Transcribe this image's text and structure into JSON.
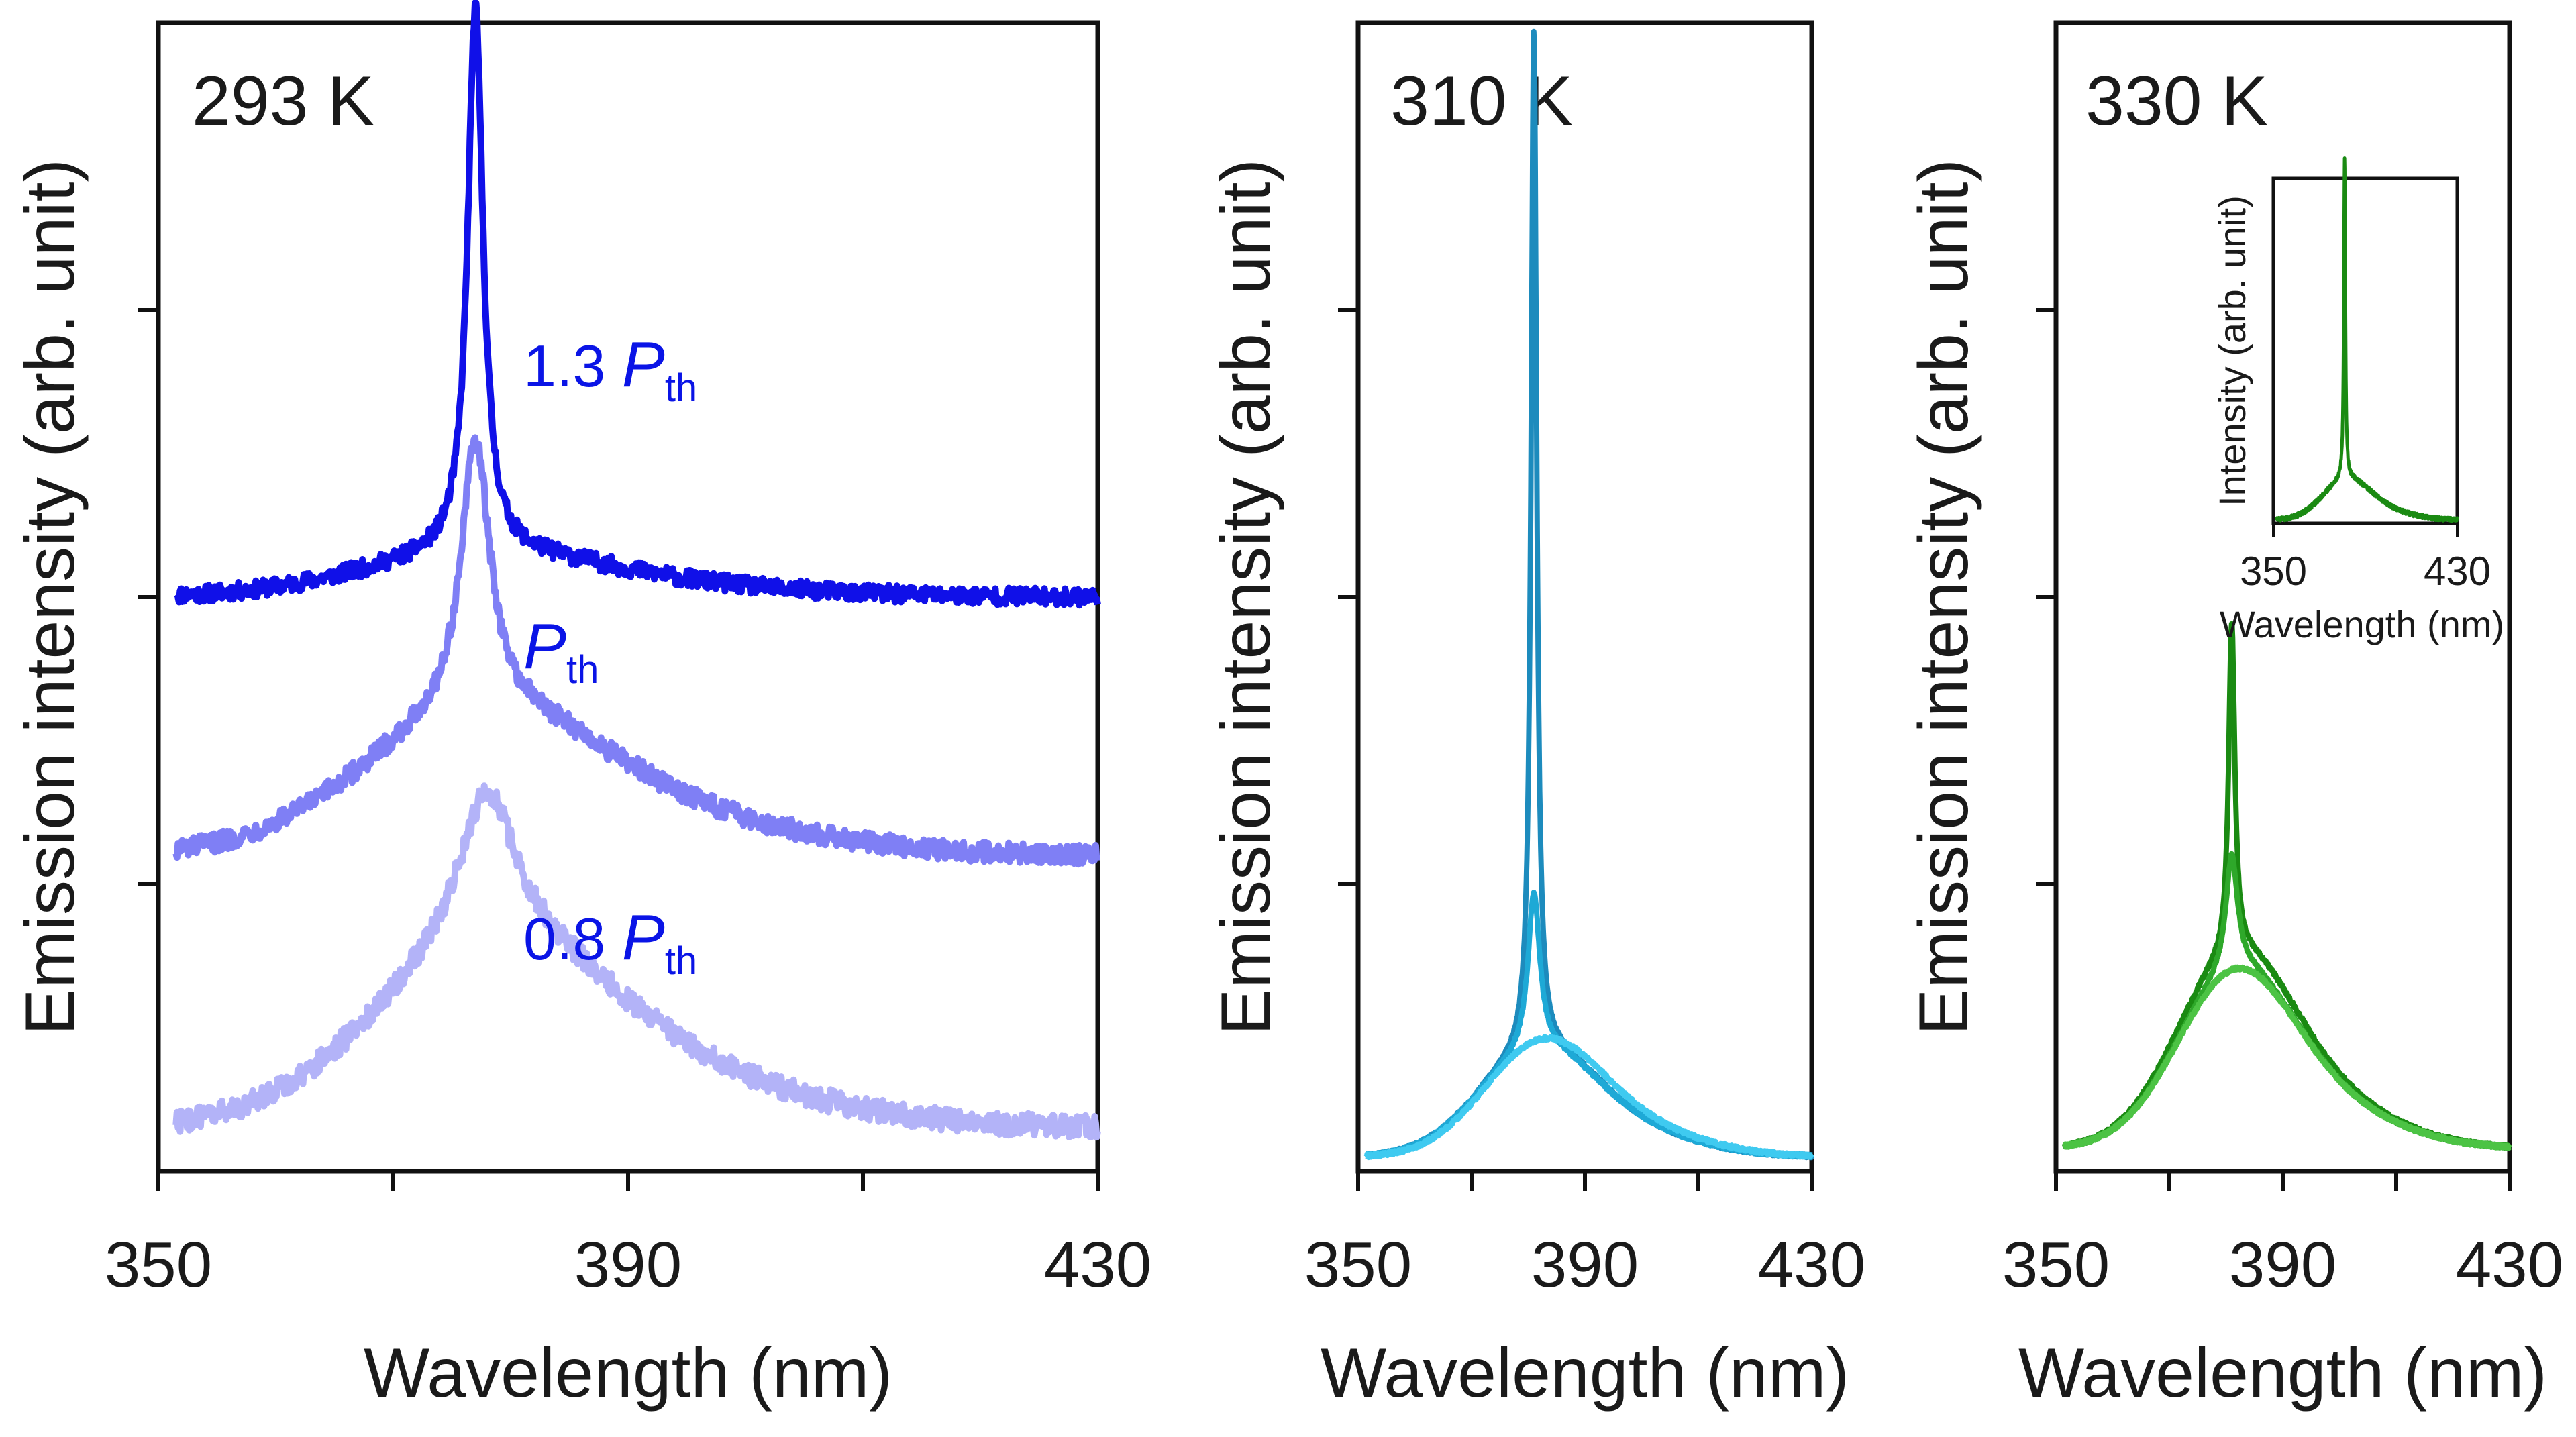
{
  "chart_data": [
    {
      "type": "line",
      "panel_label": "293 K",
      "xlabel": "Wavelength (nm)",
      "ylabel": "Emission intensity (arb. unit)",
      "xlim": [
        350,
        430
      ],
      "ylim": [
        0,
        4
      ],
      "xticks": [
        350,
        390,
        430
      ],
      "x_minor_ticks": [
        370,
        410
      ],
      "y_ticks_unlabeled": [
        1,
        2,
        3
      ],
      "series": [
        {
          "annotation": "1.3 P_th",
          "color": "#1010e8",
          "baseline": 2.0,
          "peak_wavelength": 377,
          "peak_height": 1.9,
          "fwhm": 1.6,
          "broad_height": 0.12,
          "noise": 0.03
        },
        {
          "annotation": "P_th",
          "color": "#7f7ff5",
          "baseline": 1.1,
          "peak_wavelength": 377,
          "peak_height": 0.95,
          "fwhm": 3.0,
          "broad_height": 0.4,
          "noise": 0.035
        },
        {
          "annotation": "0.8 P_th",
          "color": "#b3b3f8",
          "baseline": 0.15,
          "peak_wavelength": 378,
          "peak_height": 0.55,
          "fwhm": 6.0,
          "broad_height": 0.5,
          "noise": 0.04
        }
      ]
    },
    {
      "type": "line",
      "panel_label": "310 K",
      "xlabel": "Wavelength (nm)",
      "ylabel": "Emission intensity (arb. unit)",
      "xlim": [
        350,
        430
      ],
      "ylim": [
        0,
        4
      ],
      "xticks": [
        350,
        390,
        430
      ],
      "x_minor_ticks": [
        370,
        410
      ],
      "y_ticks_unlabeled": [
        1,
        2,
        3
      ],
      "series": [
        {
          "color": "#1d8bbd",
          "baseline": 0.05,
          "peak_wavelength": 381,
          "peak_height": 3.55,
          "fwhm": 1.2,
          "broad_height": 0.3
        },
        {
          "color": "#1ea9d6",
          "baseline": 0.05,
          "peak_wavelength": 381,
          "peak_height": 0.55,
          "fwhm": 2.5,
          "broad_height": 0.3
        },
        {
          "color": "#3fcaf0",
          "baseline": 0.05,
          "peak_wavelength": 382,
          "peak_height": 0.0,
          "fwhm": 3.0,
          "broad_height": 0.33
        }
      ]
    },
    {
      "type": "line",
      "panel_label": "330 K",
      "xlabel": "Wavelength (nm)",
      "ylabel": "Emission intensity (arb. unit)",
      "xlim": [
        350,
        430
      ],
      "ylim": [
        0,
        4
      ],
      "xticks": [
        350,
        390,
        430
      ],
      "x_minor_ticks": [
        370,
        410
      ],
      "y_ticks_unlabeled": [
        1,
        2,
        3
      ],
      "series": [
        {
          "color": "#1a8a12",
          "baseline": 0.08,
          "peak_wavelength": 381,
          "peak_height": 1.15,
          "fwhm": 1.3,
          "broad_height": 0.55
        },
        {
          "color": "#2ea82a",
          "baseline": 0.08,
          "peak_wavelength": 381,
          "peak_height": 0.4,
          "fwhm": 2.5,
          "broad_height": 0.5
        },
        {
          "color": "#4cc344",
          "baseline": 0.08,
          "peak_wavelength": 381,
          "peak_height": 0.0,
          "fwhm": 3.0,
          "broad_height": 0.5
        }
      ],
      "inset": {
        "type": "line",
        "xlabel": "Wavelength (nm)",
        "ylabel": "Intensity (arb. unit)",
        "xlim": [
          350,
          430
        ],
        "xticks": [
          350,
          430
        ],
        "series": [
          {
            "color": "#1a8a12",
            "baseline": 0.01,
            "peak_wavelength": 381,
            "peak_height": 0.98,
            "fwhm": 0.8,
            "broad_height": 0.1
          }
        ]
      }
    }
  ]
}
